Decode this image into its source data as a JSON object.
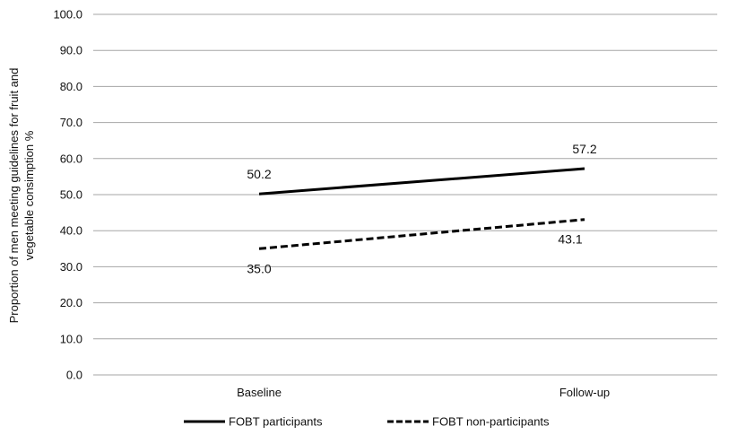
{
  "chart_data": {
    "type": "line",
    "title": "",
    "xlabel": "",
    "ylabel_lines": [
      "Proportion of men meeting guidelines for fruit and",
      "vegetable consimption %"
    ],
    "categories": [
      "Baseline",
      "Follow-up"
    ],
    "ylim": [
      0,
      100
    ],
    "yticks": [
      "0.0",
      "10.0",
      "20.0",
      "30.0",
      "40.0",
      "50.0",
      "60.0",
      "70.0",
      "80.0",
      "90.0",
      "100.0"
    ],
    "grid": true,
    "legend_position": "bottom",
    "series": [
      {
        "name": "FOBT participants",
        "values": [
          50.2,
          57.2
        ],
        "labels": [
          "50.2",
          "57.2"
        ],
        "line_style": "solid",
        "color": "#000000"
      },
      {
        "name": "FOBT non-participants",
        "values": [
          35.0,
          43.1
        ],
        "labels": [
          "35.0",
          "43.1"
        ],
        "line_style": "dashed",
        "color": "#000000"
      }
    ],
    "gridline_color": "#a6a6a6"
  }
}
